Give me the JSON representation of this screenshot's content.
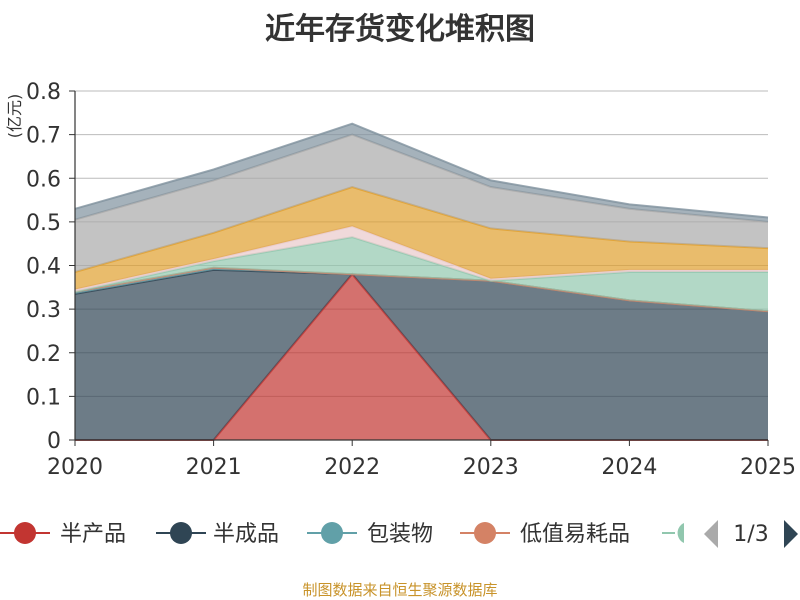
{
  "colors": {
    "title": "#333333",
    "grid": "#bbbbbb",
    "axis": "#333333",
    "ylabel": "#cc0000",
    "source": "#c8932a",
    "pager_active": "#2f4554",
    "pager_inactive": "#aaaaaa"
  },
  "source_note": "制图数据来自恒生聚源数据库",
  "legend": {
    "page": "1/3",
    "prev_icon": "triangle-left-icon",
    "next_icon": "triangle-right-icon"
  },
  "chart_data": {
    "type": "area",
    "stacked": true,
    "title": "近年存货变化堆积图",
    "ylabel": "(亿元)",
    "x": [
      "2020",
      "2021",
      "2022",
      "2023",
      "2024",
      "2025"
    ],
    "ylim": [
      0,
      0.8
    ],
    "yticks": [
      "0",
      "0.1",
      "0.2",
      "0.3",
      "0.4",
      "0.5",
      "0.6",
      "0.7",
      "0.8"
    ],
    "grid": true,
    "legend_position": "bottom",
    "series": [
      {
        "name": "半产品",
        "color": "#c23531",
        "values": [
          0,
          0,
          0.38,
          0,
          0,
          0
        ]
      },
      {
        "name": "半成品",
        "color": "#2f4554",
        "values": [
          0.335,
          0.39,
          0,
          0.365,
          0.32,
          0.295
        ]
      },
      {
        "name": "包装物",
        "color": "#61a0a8",
        "values": [
          0.005,
          0.005,
          0,
          0,
          0,
          0
        ]
      },
      {
        "name": "低值易耗品",
        "color": "#d48265",
        "values": [
          0,
          0,
          0,
          0,
          0,
          0
        ]
      },
      {
        "name": "",
        "color": "#91c7ae",
        "values": [
          0,
          0.015,
          0.085,
          0,
          0.065,
          0.09
        ]
      },
      {
        "name": "",
        "color": "#e9c9cb",
        "values": [
          0.005,
          0.005,
          0.025,
          0.005,
          0.005,
          0.005
        ]
      },
      {
        "name": "",
        "color": "#e09f2d",
        "values": [
          0.04,
          0.06,
          0.09,
          0.115,
          0.065,
          0.05
        ]
      },
      {
        "name": "",
        "color": "#a9a9a9",
        "values": [
          0.12,
          0.12,
          0.12,
          0.095,
          0.075,
          0.06
        ]
      },
      {
        "name": "",
        "color": "#7f919e",
        "values": [
          0.025,
          0.025,
          0.025,
          0.015,
          0.01,
          0.01
        ]
      }
    ]
  }
}
